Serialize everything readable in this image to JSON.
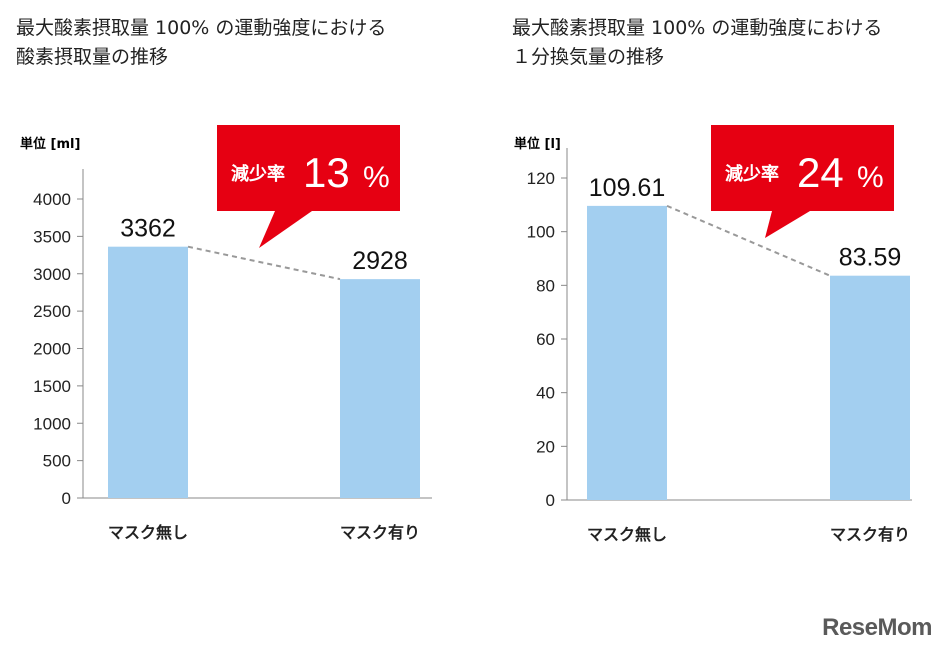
{
  "colors": {
    "bar": "#a3cff0",
    "callout": "#e60012",
    "dash": "#999999",
    "axis": "#888888"
  },
  "logo": "ReseMom",
  "chart_data": [
    {
      "type": "bar",
      "title_lines": [
        "最大酸素摂取量 100% の運動強度における",
        "酸素摂取量の推移"
      ],
      "unit_label": "単位 [ml]",
      "categories": [
        "マスク無し",
        "マスク有り"
      ],
      "values": [
        3362,
        2928
      ],
      "value_labels": [
        "3362",
        "2928"
      ],
      "ylim": [
        0,
        4000
      ],
      "yticks": [
        0,
        500,
        1000,
        1500,
        2000,
        2500,
        3000,
        3500,
        4000
      ],
      "callout": {
        "label": "減少率",
        "value": "13",
        "unit": "%"
      }
    },
    {
      "type": "bar",
      "title_lines": [
        "最大酸素摂取量 100% の運動強度における",
        "１分換気量の推移"
      ],
      "unit_label": "単位 [l]",
      "categories": [
        "マスク無し",
        "マスク有り"
      ],
      "values": [
        109.61,
        83.59
      ],
      "value_labels": [
        "109.61",
        "83.59"
      ],
      "ylim": [
        0,
        120
      ],
      "yticks": [
        0,
        20,
        40,
        60,
        80,
        100,
        120
      ],
      "callout": {
        "label": "減少率",
        "value": "24",
        "unit": "%"
      }
    }
  ]
}
